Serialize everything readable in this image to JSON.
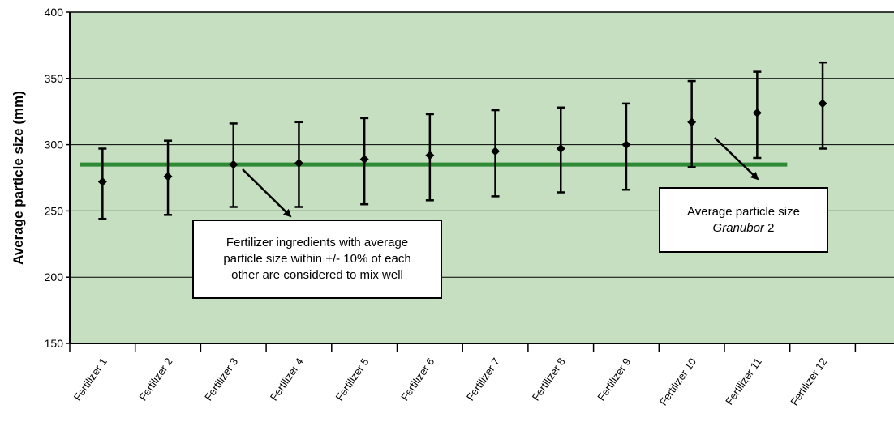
{
  "chart_data": {
    "type": "scatter",
    "title": "",
    "ylabel": "Average particle size (mm)",
    "xlabel": "",
    "ylim": [
      150,
      400
    ],
    "yticks": [
      150,
      200,
      250,
      300,
      350,
      400
    ],
    "grid": "horizontal",
    "categories": [
      "Fertilizer 1",
      "Fertilizer 2",
      "Fertilizer 3",
      "Fertilizer 4",
      "Fertilizer 5",
      "Fertilizer 6",
      "Fertilizer 7",
      "Fertilizer 8",
      "Fertilizer 9",
      "Fertilizer 10",
      "Fertilizer 11",
      "Fertilizer 12"
    ],
    "series": [
      {
        "values": [
          272,
          276,
          285,
          286,
          289,
          292,
          295,
          297,
          300,
          317,
          324,
          331
        ],
        "error_low": [
          244,
          247,
          253,
          253,
          255,
          258,
          261,
          264,
          266,
          283,
          290,
          297
        ],
        "error_high": [
          297,
          303,
          316,
          317,
          320,
          323,
          326,
          328,
          331,
          348,
          355,
          362
        ]
      }
    ],
    "reference_line": {
      "value": 285,
      "x_start_category": 0,
      "x_end_category": 10
    },
    "annotations": [
      {
        "lines": [
          "Fertilizer ingredients with average",
          "particle size within +/- 10% of each",
          "other are considered to mix well"
        ]
      },
      {
        "line1": "Average particle size",
        "line2_italic": "Granubor",
        "line2_plain": " 2"
      }
    ]
  },
  "colors": {
    "plot_background": "#c5dfc0",
    "reference_line": "#2f8a36",
    "marker": "#000000"
  }
}
